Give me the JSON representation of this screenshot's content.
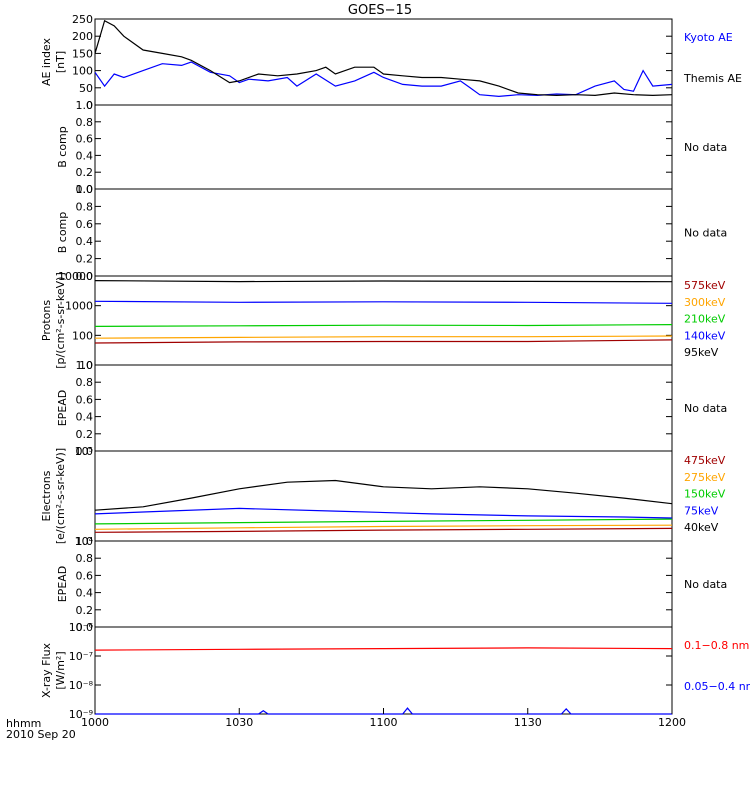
{
  "colors": {
    "black": "#000000",
    "blue": "#0000ff",
    "red": "#ff0000",
    "darkred": "#a00000",
    "orange": "#ffa500",
    "green": "#00cc00"
  },
  "figure": {
    "title": "GOES−15",
    "footer": {
      "format": "hhmm",
      "date": "2010 Sep 20"
    },
    "time_axis": {
      "start": "1000",
      "end": "1200",
      "ticks": [
        "1000",
        "1030",
        "1100",
        "1130",
        "1200"
      ]
    }
  },
  "chart_data": [
    {
      "type": "line",
      "ylabel": "AE index\n[nT]",
      "ylim": [
        0,
        250
      ],
      "yticks": [
        "0",
        "50",
        "100",
        "150",
        "200",
        "250"
      ],
      "legend": [
        "Kyoto AE",
        "Themis AE"
      ],
      "series": [
        {
          "name": "Kyoto AE",
          "color": "blue",
          "x": [
            "10:00",
            "10:02",
            "10:04",
            "10:06",
            "10:10",
            "10:14",
            "10:18",
            "10:20",
            "10:24",
            "10:28",
            "10:30",
            "10:32",
            "10:36",
            "10:40",
            "10:42",
            "10:46",
            "10:50",
            "10:54",
            "10:58",
            "11:00",
            "11:04",
            "11:08",
            "11:12",
            "11:16",
            "11:18",
            "11:20",
            "11:24",
            "11:28",
            "11:32",
            "11:36",
            "11:40",
            "11:44",
            "11:48",
            "11:50",
            "11:52",
            "11:54",
            "11:56",
            "12:00"
          ],
          "y": [
            95,
            55,
            90,
            80,
            100,
            120,
            115,
            125,
            95,
            85,
            65,
            75,
            70,
            80,
            55,
            90,
            55,
            70,
            95,
            80,
            60,
            55,
            55,
            70,
            50,
            30,
            25,
            30,
            28,
            32,
            30,
            55,
            70,
            45,
            40,
            100,
            55,
            60
          ]
        },
        {
          "name": "Themis AE",
          "color": "black",
          "x": [
            "10:00",
            "10:02",
            "10:04",
            "10:06",
            "10:10",
            "10:14",
            "10:18",
            "10:20",
            "10:24",
            "10:28",
            "10:30",
            "10:34",
            "10:38",
            "10:42",
            "10:46",
            "10:48",
            "10:50",
            "10:54",
            "10:58",
            "11:00",
            "11:04",
            "11:08",
            "11:12",
            "11:16",
            "11:20",
            "11:24",
            "11:28",
            "11:32",
            "11:36",
            "11:40",
            "11:44",
            "11:48",
            "11:52",
            "11:56",
            "12:00"
          ],
          "y": [
            150,
            245,
            230,
            200,
            160,
            150,
            140,
            130,
            100,
            65,
            70,
            90,
            85,
            90,
            100,
            110,
            90,
            110,
            110,
            90,
            85,
            80,
            80,
            75,
            70,
            55,
            35,
            30,
            28,
            30,
            28,
            35,
            30,
            28,
            30
          ]
        }
      ]
    },
    {
      "type": "line",
      "ylabel": "B comp",
      "ylim": [
        0,
        1
      ],
      "yticks": [
        "0.0",
        "0.2",
        "0.4",
        "0.6",
        "0.8",
        "1.0"
      ],
      "annotation": "No data",
      "series": []
    },
    {
      "type": "line",
      "ylabel": "B comp",
      "ylim": [
        0,
        1
      ],
      "yticks": [
        "0.0",
        "0.2",
        "0.4",
        "0.6",
        "0.8",
        "1.0"
      ],
      "annotation": "No data",
      "series": []
    },
    {
      "type": "line",
      "ylabel": "Protons\n[p/(cm²-s-sr-keV)]",
      "yscale": "log",
      "ylim": [
        10,
        10000
      ],
      "yticks": [
        "10",
        "100",
        "1000",
        "10000"
      ],
      "legend": [
        "575keV",
        "300keV",
        "210keV",
        "140keV",
        "95keV"
      ],
      "series": [
        {
          "name": "575keV",
          "color": "darkred",
          "x": [
            "10:00",
            "10:30",
            "11:00",
            "11:30",
            "12:00"
          ],
          "y": [
            55,
            60,
            62,
            62,
            70
          ]
        },
        {
          "name": "300keV",
          "color": "orange",
          "x": [
            "10:00",
            "10:30",
            "11:00",
            "11:30",
            "12:00"
          ],
          "y": [
            80,
            85,
            90,
            90,
            95
          ]
        },
        {
          "name": "210keV",
          "color": "green",
          "x": [
            "10:00",
            "10:30",
            "11:00",
            "11:30",
            "12:00"
          ],
          "y": [
            200,
            210,
            220,
            215,
            230
          ]
        },
        {
          "name": "140keV",
          "color": "blue",
          "x": [
            "10:00",
            "10:30",
            "11:00",
            "11:30",
            "12:00"
          ],
          "y": [
            1400,
            1300,
            1350,
            1300,
            1200
          ]
        },
        {
          "name": "95keV",
          "color": "black",
          "x": [
            "10:00",
            "10:30",
            "11:00",
            "11:30",
            "12:00"
          ],
          "y": [
            7000,
            6500,
            6800,
            6600,
            6400
          ]
        }
      ]
    },
    {
      "type": "line",
      "ylabel": "EPEAD",
      "ylim": [
        0,
        1
      ],
      "yticks": [
        "0.0",
        "0.2",
        "0.4",
        "0.6",
        "0.8",
        "1.0"
      ],
      "annotation": "No data",
      "series": []
    },
    {
      "type": "line",
      "ylabel": "Electrons\n[e/(cm²-s-sr-keV)]",
      "yscale": "log",
      "ylim": [
        10000,
        100000
      ],
      "yticks": [
        "10⁴",
        "10⁵"
      ],
      "legend": [
        "475keV",
        "275keV",
        "150keV",
        "75keV",
        "40keV"
      ],
      "series": [
        {
          "name": "475keV",
          "color": "darkred",
          "x": [
            "10:00",
            "10:30",
            "11:00",
            "11:30",
            "12:00"
          ],
          "y": [
            12500,
            12800,
            13200,
            13500,
            13800
          ]
        },
        {
          "name": "275keV",
          "color": "orange",
          "x": [
            "10:00",
            "10:30",
            "11:00",
            "11:30",
            "12:00"
          ],
          "y": [
            13500,
            14000,
            14500,
            14800,
            15000
          ]
        },
        {
          "name": "150keV",
          "color": "green",
          "x": [
            "10:00",
            "10:30",
            "11:00",
            "11:30",
            "12:00"
          ],
          "y": [
            15500,
            16000,
            16500,
            17000,
            17500
          ]
        },
        {
          "name": "75keV",
          "color": "blue",
          "x": [
            "10:00",
            "10:10",
            "10:30",
            "10:50",
            "11:10",
            "11:30",
            "11:50",
            "12:00"
          ],
          "y": [
            20000,
            21000,
            23000,
            21500,
            20000,
            19000,
            18500,
            18000
          ]
        },
        {
          "name": "40keV",
          "color": "black",
          "x": [
            "10:00",
            "10:10",
            "10:20",
            "10:30",
            "10:40",
            "10:50",
            "11:00",
            "11:10",
            "11:20",
            "11:30",
            "11:40",
            "11:50",
            "12:00"
          ],
          "y": [
            22000,
            24000,
            30000,
            38000,
            45000,
            47000,
            40000,
            38000,
            40000,
            38000,
            34000,
            30000,
            26000
          ]
        }
      ]
    },
    {
      "type": "line",
      "ylabel": "EPEAD",
      "ylim": [
        0,
        1
      ],
      "yticks": [
        "0.0",
        "0.2",
        "0.4",
        "0.6",
        "0.8",
        "1.0"
      ],
      "annotation": "No data",
      "series": []
    },
    {
      "type": "line",
      "ylabel": "X-ray Flux\n[W/m²]",
      "yscale": "log",
      "ylim": [
        1e-09,
        1e-06
      ],
      "yticks": [
        "10⁻⁹",
        "10⁻⁸",
        "10⁻⁷",
        "10⁻⁶"
      ],
      "legend": [
        "0.1−0.8 nm",
        "0.05−0.4 nm"
      ],
      "series": [
        {
          "name": "0.1−0.8 nm",
          "color": "red",
          "x": [
            "10:00",
            "10:30",
            "11:00",
            "11:30",
            "12:00"
          ],
          "y": [
            1.6e-07,
            1.7e-07,
            1.8e-07,
            1.9e-07,
            1.8e-07
          ]
        },
        {
          "name": "0.05−0.4 nm",
          "color": "blue",
          "x": [
            "10:00",
            "10:34",
            "10:35",
            "10:36",
            "11:04",
            "11:05",
            "11:06",
            "11:37",
            "11:38",
            "11:39",
            "12:00"
          ],
          "y": [
            1e-09,
            1e-09,
            1.3e-09,
            1e-09,
            1e-09,
            1.6e-09,
            1e-09,
            1e-09,
            1.5e-09,
            1e-09,
            1e-09
          ]
        }
      ]
    }
  ]
}
